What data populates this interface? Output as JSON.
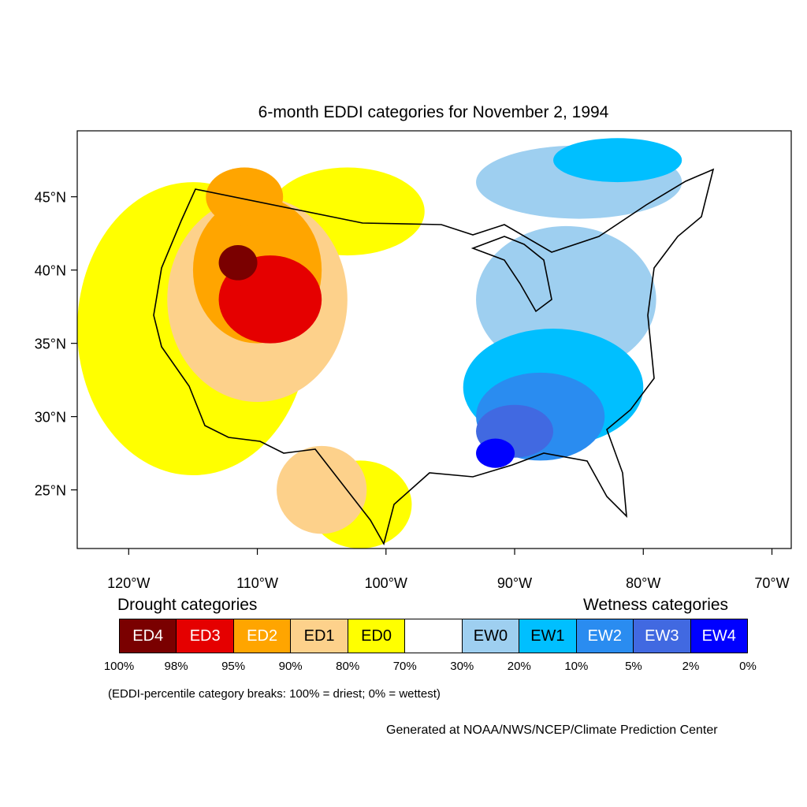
{
  "title": "6-month EDDI categories for November 2, 1994",
  "map": {
    "lon_range": [
      -124,
      -68.5
    ],
    "lat_range": [
      21,
      49.5
    ],
    "lat_ticks": [
      {
        "value": 45,
        "label": "45°N"
      },
      {
        "value": 40,
        "label": "40°N"
      },
      {
        "value": 35,
        "label": "35°N"
      },
      {
        "value": 30,
        "label": "30°N"
      },
      {
        "value": 25,
        "label": "25°N"
      }
    ],
    "lon_ticks": [
      {
        "value": -120,
        "label": "120°W"
      },
      {
        "value": -110,
        "label": "110°W"
      },
      {
        "value": -100,
        "label": "100°W"
      },
      {
        "value": -90,
        "label": "90°W"
      },
      {
        "value": -80,
        "label": "80°W"
      },
      {
        "value": -70,
        "label": "70°W"
      }
    ],
    "regions": [
      {
        "category": "ED0",
        "center": [
          -115,
          36
        ],
        "rx": 9,
        "ry": 10
      },
      {
        "category": "ED0",
        "center": [
          -103,
          44
        ],
        "rx": 6,
        "ry": 3
      },
      {
        "category": "ED0",
        "center": [
          -102,
          24
        ],
        "rx": 4,
        "ry": 3
      },
      {
        "category": "ED1",
        "center": [
          -110,
          38
        ],
        "rx": 7,
        "ry": 7
      },
      {
        "category": "ED1",
        "center": [
          -105,
          25
        ],
        "rx": 3.5,
        "ry": 3
      },
      {
        "category": "ED2",
        "center": [
          -110,
          40
        ],
        "rx": 5,
        "ry": 5
      },
      {
        "category": "ED2",
        "center": [
          -111,
          45
        ],
        "rx": 3,
        "ry": 2
      },
      {
        "category": "ED3",
        "center": [
          -109,
          38
        ],
        "rx": 4,
        "ry": 3
      },
      {
        "category": "ED4",
        "center": [
          -111.5,
          40.5
        ],
        "rx": 1.5,
        "ry": 1.2
      },
      {
        "category": "EW0",
        "center": [
          -86,
          38
        ],
        "rx": 7,
        "ry": 5
      },
      {
        "category": "EW0",
        "center": [
          -85,
          46
        ],
        "rx": 8,
        "ry": 2.5
      },
      {
        "category": "EW1",
        "center": [
          -87,
          32
        ],
        "rx": 7,
        "ry": 4
      },
      {
        "category": "EW1",
        "center": [
          -82,
          47.5
        ],
        "rx": 5,
        "ry": 1.5
      },
      {
        "category": "EW2",
        "center": [
          -88,
          30
        ],
        "rx": 5,
        "ry": 3
      },
      {
        "category": "EW3",
        "center": [
          -90,
          29
        ],
        "rx": 3,
        "ry": 1.8
      },
      {
        "category": "EW4",
        "center": [
          -91.5,
          27.5
        ],
        "rx": 1.5,
        "ry": 1
      }
    ]
  },
  "legend": {
    "drought_label": "Drought categories",
    "wetness_label": "Wetness categories",
    "categories": [
      {
        "code": "ED4",
        "color": "#7a0000",
        "text_color": "#ffffff"
      },
      {
        "code": "ED3",
        "color": "#e50000",
        "text_color": "#ffffff"
      },
      {
        "code": "ED2",
        "color": "#ffa500",
        "text_color": "#ffffff"
      },
      {
        "code": "ED1",
        "color": "#fdd18b",
        "text_color": "#000000"
      },
      {
        "code": "ED0",
        "color": "#ffff00",
        "text_color": "#000000"
      },
      {
        "code": "",
        "color": "#ffffff",
        "text_color": "#000000"
      },
      {
        "code": "EW0",
        "color": "#9ecff0",
        "text_color": "#000000"
      },
      {
        "code": "EW1",
        "color": "#00bfff",
        "text_color": "#000000"
      },
      {
        "code": "EW2",
        "color": "#2a8cf0",
        "text_color": "#ffffff"
      },
      {
        "code": "EW3",
        "color": "#4169e1",
        "text_color": "#ffffff"
      },
      {
        "code": "EW4",
        "color": "#0000ff",
        "text_color": "#ffffff"
      }
    ],
    "ticks": [
      "100%",
      "98%",
      "95%",
      "90%",
      "80%",
      "70%",
      "30%",
      "20%",
      "10%",
      "5%",
      "2%",
      "0%"
    ],
    "note": "(EDDI-percentile category breaks: 100% = driest; 0% = wettest)"
  },
  "credit": "Generated at NOAA/NWS/NCEP/Climate Prediction Center"
}
